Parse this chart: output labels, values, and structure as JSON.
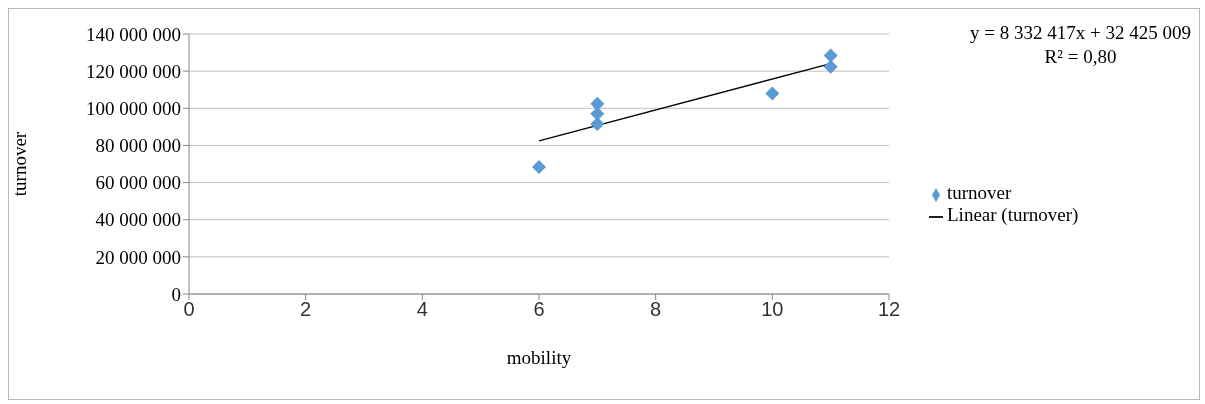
{
  "chart_data": {
    "type": "scatter",
    "xlabel": "mobility",
    "ylabel": "turnover",
    "xlim": [
      0,
      12
    ],
    "xticks": [
      0,
      2,
      4,
      6,
      8,
      10,
      12
    ],
    "ylim": [
      0,
      140000000
    ],
    "yticks": [
      0,
      {
        "value": 20000000,
        "label": "20 000 000"
      },
      {
        "value": 40000000,
        "label": "40 000 000"
      },
      {
        "value": 60000000,
        "label": "60 000 000"
      },
      {
        "value": 80000000,
        "label": "80 000 000"
      },
      {
        "value": 100000000,
        "label": "100 000 000"
      },
      {
        "value": 120000000,
        "label": "120 000 000"
      },
      {
        "value": 140000000,
        "label": "140 000 000"
      }
    ],
    "grid": "y",
    "legend": "right",
    "series": [
      {
        "name": "turnover",
        "marker": "diamond",
        "color": "#5b9bd5",
        "x": [
          6,
          7,
          7,
          7,
          10,
          11,
          11
        ],
        "values": [
          68400000,
          102500000,
          97000000,
          91500000,
          108000000,
          128400000,
          122400000
        ]
      },
      {
        "name": "Linear (turnover)",
        "type": "line",
        "marker": "none",
        "color": "#000000",
        "x": [
          6,
          11
        ],
        "values": [
          82400000,
          124100000
        ]
      }
    ],
    "annotations": [
      "y = 8 332 417x + 32 425 009",
      "R² = 0,80"
    ]
  }
}
